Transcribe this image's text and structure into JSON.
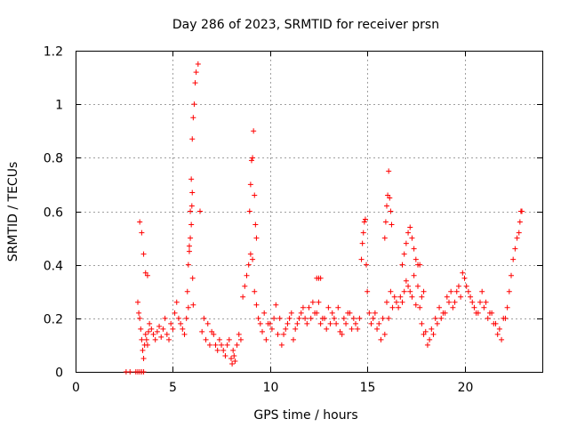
{
  "chart_data": {
    "type": "scatter",
    "title": "Day 286 of 2023, SRMTID for receiver prsn",
    "xlabel": "GPS time / hours",
    "ylabel": "SRMTID / TECUs",
    "xlim": [
      0,
      24
    ],
    "ylim": [
      0,
      1.2
    ],
    "xticks": [
      0,
      5,
      10,
      15,
      20
    ],
    "xtick_labels": [
      "0",
      "5",
      "10",
      "15",
      "20"
    ],
    "yticks": [
      0,
      0.2,
      0.4,
      0.6,
      0.8,
      1,
      1.2
    ],
    "ytick_labels": [
      "0",
      "0.2",
      "0.4",
      "0.6",
      "0.8",
      "1",
      "1.2"
    ],
    "grid": true,
    "marker": "+",
    "color": "#ff0000",
    "series": [
      {
        "name": "SRMTID",
        "x": [
          2.6,
          2.8,
          3.1,
          3.2,
          3.3,
          3.4,
          3.5,
          3.2,
          3.25,
          3.3,
          3.35,
          3.4,
          3.45,
          3.5,
          3.55,
          3.6,
          3.65,
          3.7,
          3.75,
          3.8,
          3.9,
          4.0,
          4.1,
          4.2,
          4.3,
          4.4,
          4.5,
          4.6,
          4.7,
          4.8,
          4.9,
          5.0,
          5.1,
          5.2,
          5.3,
          5.4,
          5.5,
          5.6,
          5.7,
          5.8,
          3.3,
          3.4,
          3.5,
          3.6,
          3.7,
          5.75,
          5.8,
          5.85,
          5.9,
          5.95,
          6.0,
          6.05,
          6.1,
          6.15,
          6.2,
          6.3,
          6.4,
          5.85,
          5.9,
          5.95,
          5.98,
          6.0,
          6.02,
          6.05,
          6.5,
          6.7,
          6.9,
          7.1,
          7.3,
          7.5,
          7.7,
          7.9,
          8.0,
          8.1,
          8.2,
          8.3,
          8.4,
          8.5,
          6.6,
          6.8,
          7.0,
          7.2,
          7.4,
          7.6,
          7.8,
          8.05,
          8.15,
          8.6,
          8.7,
          8.8,
          8.9,
          9.0,
          9.1,
          9.2,
          9.3,
          9.4,
          9.5,
          8.95,
          9.0,
          9.05,
          9.1,
          9.15,
          9.2,
          9.25,
          9.3,
          9.6,
          9.8,
          10.0,
          10.2,
          10.4,
          10.6,
          10.8,
          11.0,
          11.2,
          11.4,
          11.6,
          11.8,
          12.0,
          12.2,
          12.4,
          12.6,
          12.8,
          13.0,
          13.2,
          13.4,
          13.6,
          13.8,
          14.0,
          14.2,
          14.4,
          14.6,
          9.7,
          9.9,
          10.1,
          10.3,
          10.5,
          10.7,
          10.9,
          11.1,
          11.3,
          11.5,
          11.7,
          11.9,
          12.1,
          12.3,
          12.5,
          12.7,
          12.9,
          13.1,
          13.3,
          13.5,
          13.7,
          13.9,
          14.1,
          14.3,
          14.5,
          12.4,
          12.5,
          12.6,
          14.7,
          14.75,
          14.8,
          14.85,
          14.9,
          14.95,
          15.0,
          15.1,
          15.2,
          15.3,
          15.5,
          15.7,
          15.9,
          16.1,
          16.3,
          16.5,
          16.7,
          16.9,
          17.1,
          17.3,
          17.5,
          17.7,
          17.9,
          15.4,
          15.6,
          15.8,
          16.0,
          16.2,
          16.4,
          16.6,
          16.8,
          17.0,
          17.2,
          17.4,
          17.6,
          17.8,
          15.9,
          15.95,
          16.0,
          16.05,
          16.1,
          16.15,
          16.2,
          16.25,
          16.8,
          16.9,
          17.0,
          17.1,
          17.2,
          17.3,
          17.4,
          17.5,
          17.6,
          17.7,
          17.8,
          18.0,
          18.2,
          18.4,
          18.6,
          18.8,
          19.0,
          19.2,
          19.4,
          19.6,
          19.8,
          20.0,
          20.2,
          20.4,
          20.6,
          20.8,
          21.0,
          21.2,
          21.4,
          21.6,
          21.8,
          22.0,
          22.2,
          17.9,
          18.1,
          18.3,
          18.5,
          18.7,
          18.9,
          19.1,
          19.3,
          19.5,
          19.7,
          19.9,
          20.1,
          20.3,
          20.5,
          20.7,
          20.9,
          21.1,
          21.3,
          21.5,
          21.7,
          21.9,
          22.1,
          22.3,
          22.4,
          22.5,
          22.6,
          22.7,
          22.8,
          22.85,
          22.9,
          22.95
        ],
        "y": [
          0.0,
          0.0,
          0.0,
          0.0,
          0.0,
          0.0,
          0.0,
          0.26,
          0.22,
          0.2,
          0.16,
          0.12,
          0.08,
          0.05,
          0.1,
          0.14,
          0.12,
          0.1,
          0.15,
          0.18,
          0.16,
          0.14,
          0.12,
          0.15,
          0.17,
          0.13,
          0.16,
          0.2,
          0.14,
          0.12,
          0.18,
          0.16,
          0.22,
          0.26,
          0.2,
          0.18,
          0.16,
          0.14,
          0.2,
          0.24,
          0.56,
          0.52,
          0.44,
          0.37,
          0.36,
          0.3,
          0.4,
          0.47,
          0.6,
          0.72,
          0.87,
          0.95,
          1.0,
          1.08,
          1.12,
          1.15,
          0.6,
          0.45,
          0.5,
          0.55,
          0.62,
          0.67,
          0.35,
          0.25,
          0.15,
          0.12,
          0.1,
          0.14,
          0.08,
          0.1,
          0.06,
          0.12,
          0.05,
          0.08,
          0.04,
          0.1,
          0.14,
          0.12,
          0.2,
          0.18,
          0.15,
          0.1,
          0.12,
          0.08,
          0.1,
          0.03,
          0.06,
          0.28,
          0.32,
          0.36,
          0.4,
          0.44,
          0.42,
          0.3,
          0.25,
          0.2,
          0.18,
          0.6,
          0.7,
          0.79,
          0.8,
          0.9,
          0.66,
          0.55,
          0.5,
          0.15,
          0.12,
          0.18,
          0.2,
          0.14,
          0.1,
          0.16,
          0.2,
          0.12,
          0.18,
          0.22,
          0.2,
          0.24,
          0.26,
          0.22,
          0.18,
          0.2,
          0.24,
          0.22,
          0.18,
          0.15,
          0.2,
          0.22,
          0.16,
          0.18,
          0.2,
          0.22,
          0.18,
          0.16,
          0.25,
          0.2,
          0.14,
          0.18,
          0.22,
          0.16,
          0.2,
          0.24,
          0.18,
          0.2,
          0.22,
          0.26,
          0.2,
          0.16,
          0.18,
          0.2,
          0.24,
          0.14,
          0.18,
          0.22,
          0.2,
          0.16,
          0.35,
          0.35,
          0.35,
          0.42,
          0.48,
          0.52,
          0.56,
          0.57,
          0.4,
          0.3,
          0.22,
          0.18,
          0.2,
          0.16,
          0.12,
          0.14,
          0.2,
          0.24,
          0.26,
          0.28,
          0.3,
          0.32,
          0.28,
          0.25,
          0.24,
          0.3,
          0.22,
          0.18,
          0.2,
          0.26,
          0.3,
          0.28,
          0.24,
          0.26,
          0.34,
          0.3,
          0.36,
          0.32,
          0.28,
          0.5,
          0.56,
          0.62,
          0.66,
          0.75,
          0.65,
          0.6,
          0.55,
          0.4,
          0.44,
          0.48,
          0.52,
          0.54,
          0.5,
          0.46,
          0.42,
          0.4,
          0.4,
          0.18,
          0.15,
          0.12,
          0.14,
          0.18,
          0.2,
          0.22,
          0.26,
          0.24,
          0.3,
          0.28,
          0.35,
          0.3,
          0.26,
          0.22,
          0.26,
          0.24,
          0.2,
          0.22,
          0.18,
          0.16,
          0.2,
          0.24,
          0.14,
          0.1,
          0.16,
          0.2,
          0.24,
          0.22,
          0.28,
          0.3,
          0.26,
          0.32,
          0.37,
          0.32,
          0.28,
          0.24,
          0.22,
          0.3,
          0.26,
          0.22,
          0.18,
          0.14,
          0.12,
          0.2,
          0.3,
          0.36,
          0.42,
          0.46,
          0.5,
          0.52,
          0.56,
          0.6,
          0.6
        ]
      }
    ]
  }
}
